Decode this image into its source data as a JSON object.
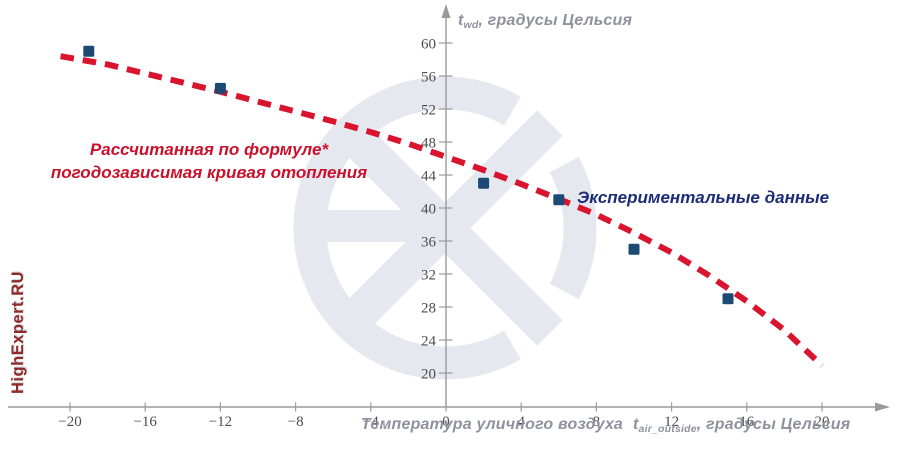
{
  "brand": {
    "watermark_text": "HighExpert.RU"
  },
  "colors": {
    "curve_red": "#D8142E",
    "point_navy": "#1D4A74",
    "label_red": "#C9112B",
    "label_navy": "#1B2D78",
    "axis_gray": "#9A9A9A",
    "tick_text_gray": "#4D4D4D",
    "axis_title_gray": "#8F919C",
    "watermark_logo_gray": "#E6E8F0",
    "watermark_text_red": "#8E2A2A"
  },
  "annotations": {
    "curve_label_line1": "Рассчитанная по формуле*",
    "curve_label_line2": "погодозависимая кривая отопления",
    "points_label": "Экспериментальные данные"
  },
  "chart_data": {
    "type": "line+scatter",
    "title": "",
    "grid": false,
    "legend_position": "inline-annotations",
    "x_axis": {
      "title_prefix": "Температура уличного воздуха",
      "symbol": "t",
      "symbol_subscript": "air_outside",
      "title_suffix": ", градусы Цельсия",
      "ticks": [
        -20,
        -16,
        -12,
        -8,
        -4,
        0,
        4,
        8,
        12,
        16,
        20
      ],
      "range": [
        -23.5,
        23.5
      ]
    },
    "y_axis": {
      "symbol": "t",
      "symbol_subscript": "wd",
      "title_suffix": ", градусы Цельсия",
      "ticks": [
        20,
        24,
        28,
        32,
        36,
        40,
        44,
        48,
        52,
        56,
        60
      ],
      "range": [
        16,
        64
      ]
    },
    "series": [
      {
        "name": "Рассчитанная по формуле* погодозависимая кривая отопления",
        "type": "line",
        "style": "dashed",
        "color": "#D8142E",
        "points": [
          [
            -20.5,
            58.4
          ],
          [
            -18,
            57.4
          ],
          [
            -16,
            56.3
          ],
          [
            -14,
            55.2
          ],
          [
            -12,
            54.1
          ],
          [
            -10,
            52.9
          ],
          [
            -8,
            51.7
          ],
          [
            -6,
            50.5
          ],
          [
            -4,
            49.2
          ],
          [
            -2,
            47.8
          ],
          [
            0,
            46.2
          ],
          [
            2,
            44.6
          ],
          [
            4,
            42.9
          ],
          [
            6,
            41.1
          ],
          [
            8,
            39.2
          ],
          [
            10,
            37.0
          ],
          [
            12,
            34.6
          ],
          [
            14,
            31.8
          ],
          [
            16,
            28.7
          ],
          [
            18,
            25.2
          ],
          [
            20,
            20.9
          ]
        ]
      },
      {
        "name": "Экспериментальные данные",
        "type": "scatter",
        "marker": "square",
        "color": "#1D4A74",
        "points": [
          [
            -19,
            59
          ],
          [
            -12,
            54.5
          ],
          [
            2,
            43
          ],
          [
            6,
            41
          ],
          [
            10,
            35
          ],
          [
            15,
            29
          ]
        ]
      }
    ]
  }
}
